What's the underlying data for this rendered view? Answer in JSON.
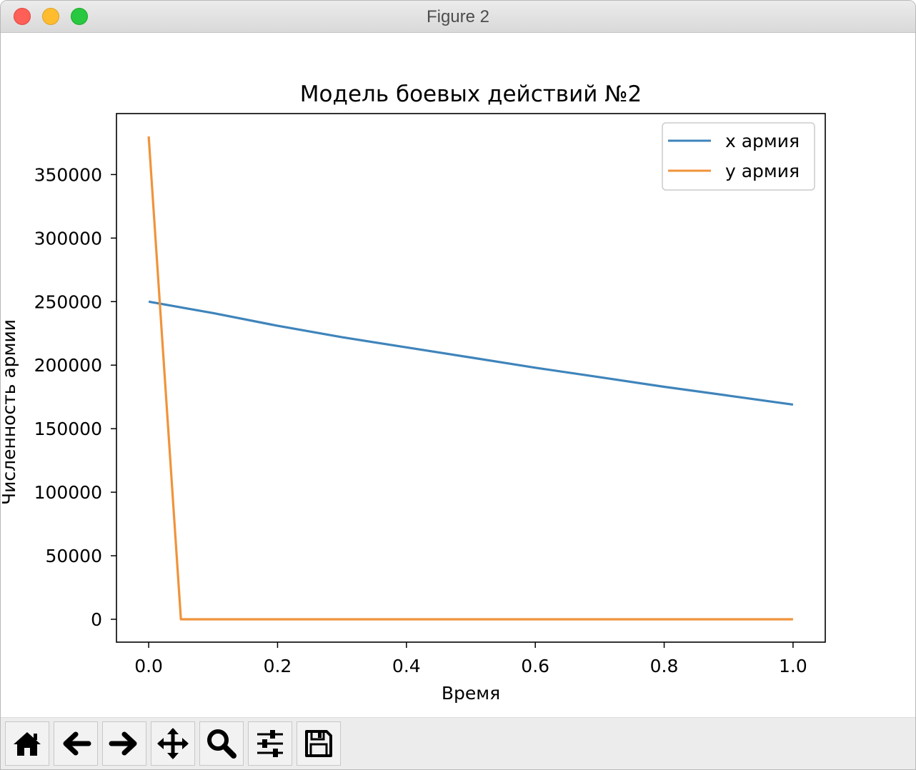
{
  "window": {
    "title": "Figure 2"
  },
  "icons": [
    "home-icon",
    "back-arrow-icon",
    "forward-arrow-icon",
    "pan-icon",
    "zoom-icon",
    "configure-subplots-icon",
    "save-icon"
  ],
  "chart_data": {
    "type": "line",
    "title": "Модель боевых действий №2",
    "xlabel": "Время",
    "ylabel": "Численность армии",
    "xlim": [
      -0.05,
      1.05
    ],
    "ylim": [
      -18000,
      398000
    ],
    "xticks": [
      0.0,
      0.2,
      0.4,
      0.6,
      0.8,
      1.0
    ],
    "xtick_labels": [
      "0.0",
      "0.2",
      "0.4",
      "0.6",
      "0.8",
      "1.0"
    ],
    "yticks": [
      0,
      50000,
      100000,
      150000,
      200000,
      250000,
      300000,
      350000
    ],
    "ytick_labels": [
      "0",
      "50000",
      "100000",
      "150000",
      "200000",
      "250000",
      "300000",
      "350000"
    ],
    "grid": false,
    "legend_position": "top-right",
    "series": [
      {
        "name": "x армия",
        "color": "#3f84bb",
        "x": [
          0.0,
          0.05,
          0.1,
          0.2,
          0.3,
          0.4,
          0.5,
          0.6,
          0.7,
          0.8,
          0.9,
          1.0
        ],
        "y": [
          250000,
          245500,
          241000,
          231000,
          222000,
          214000,
          206000,
          198000,
          190500,
          183000,
          176000,
          169000
        ]
      },
      {
        "name": "y армия",
        "color": "#f0933a",
        "x": [
          0.0,
          0.05,
          0.1,
          0.2,
          0.3,
          0.4,
          0.5,
          0.6,
          0.7,
          0.8,
          0.9,
          1.0
        ],
        "y": [
          380000,
          0,
          0,
          0,
          0,
          0,
          0,
          0,
          0,
          0,
          0,
          0
        ]
      }
    ]
  }
}
